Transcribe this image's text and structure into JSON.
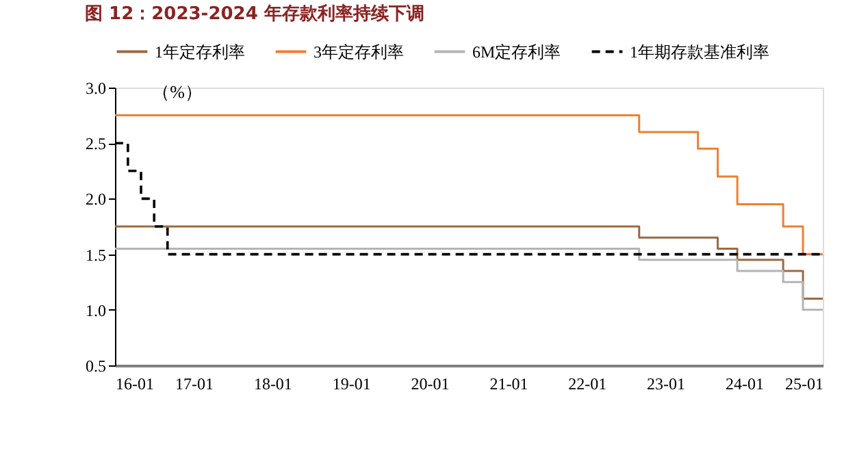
{
  "chart_data": {
    "type": "step",
    "title": "图 12：2023-2024 年存款利率持续下调",
    "ylabel": "（%）",
    "series": [
      {
        "name": "1年定存利率",
        "color": "#9c6a42",
        "line_style": "solid",
        "x": [
          "2016-01",
          "2022-09",
          "2023-09",
          "2023-12",
          "2024-07",
          "2024-10",
          "2025-01"
        ],
        "values": [
          1.75,
          1.65,
          1.55,
          1.45,
          1.35,
          1.1,
          1.1
        ]
      },
      {
        "name": "3年定存利率",
        "color": "#f07f30",
        "line_style": "solid",
        "x": [
          "2016-01",
          "2022-09",
          "2023-06",
          "2023-09",
          "2023-12",
          "2024-07",
          "2024-10",
          "2025-01"
        ],
        "values": [
          2.75,
          2.6,
          2.45,
          2.2,
          1.95,
          1.75,
          1.5,
          1.5
        ]
      },
      {
        "name": "6M定存利率",
        "color": "#b4b4b4",
        "line_style": "solid",
        "x": [
          "2016-01",
          "2022-09",
          "2023-12",
          "2024-07",
          "2024-10",
          "2025-01"
        ],
        "values": [
          1.55,
          1.45,
          1.35,
          1.25,
          1.0,
          1.0
        ]
      },
      {
        "name": "1年期存款基准利率",
        "color": "#000000",
        "line_style": "dashed",
        "x": [
          "2016-01",
          "2016-03",
          "2016-05",
          "2016-07",
          "2016-09",
          "2025-01"
        ],
        "values": [
          2.5,
          2.25,
          2.0,
          1.75,
          1.5,
          1.5
        ]
      }
    ],
    "xlim": [
      "2016-01",
      "2025-01"
    ],
    "xticks": [
      {
        "value": "2016-01",
        "label": "16-01"
      },
      {
        "value": "2017-01",
        "label": "17-01"
      },
      {
        "value": "2018-01",
        "label": "18-01"
      },
      {
        "value": "2019-01",
        "label": "19-01"
      },
      {
        "value": "2020-01",
        "label": "20-01"
      },
      {
        "value": "2021-01",
        "label": "21-01"
      },
      {
        "value": "2022-01",
        "label": "22-01"
      },
      {
        "value": "2023-01",
        "label": "23-01"
      },
      {
        "value": "2024-01",
        "label": "24-01"
      },
      {
        "value": "2025-01",
        "label": "25-01"
      }
    ],
    "ylim": [
      0.5,
      3.0
    ],
    "yticks": [
      {
        "value": 0.5,
        "label": "0.5"
      },
      {
        "value": 1.0,
        "label": "1.0"
      },
      {
        "value": 1.5,
        "label": "1.5"
      },
      {
        "value": 2.0,
        "label": "2.0"
      },
      {
        "value": 2.5,
        "label": "2.5"
      },
      {
        "value": 3.0,
        "label": "3.0"
      }
    ],
    "grid": false,
    "legend": "top"
  }
}
